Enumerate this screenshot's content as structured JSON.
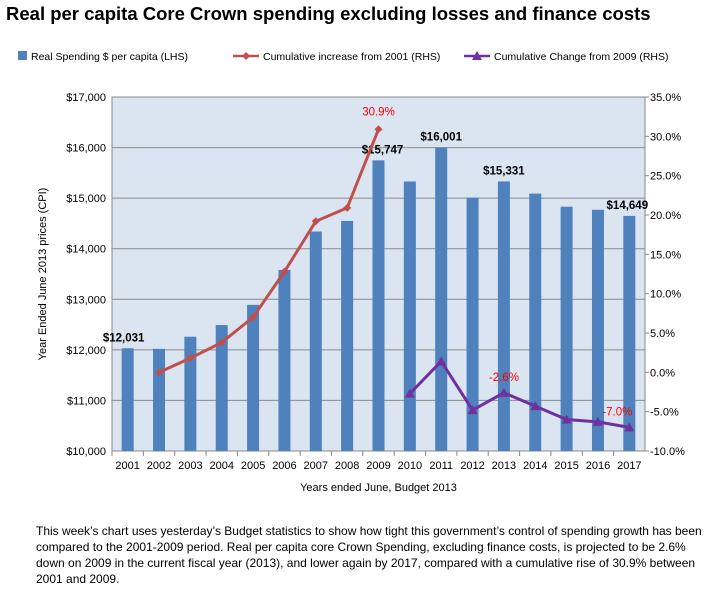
{
  "chart_data": {
    "type": "bar",
    "title": "Real per capita Core Crown spending excluding losses and finance costs",
    "xlabel": "Years ended June, Budget 2013",
    "ylabel": "Year Ended June 2013 prices (CPI)",
    "categories": [
      "2001",
      "2002",
      "2003",
      "2004",
      "2005",
      "2006",
      "2007",
      "2008",
      "2009",
      "2010",
      "2011",
      "2012",
      "2013",
      "2014",
      "2015",
      "2016",
      "2017"
    ],
    "ylim": [
      10000,
      17000
    ],
    "y2lim": [
      -10,
      35
    ],
    "yticks": [
      "$10,000",
      "$11,000",
      "$12,000",
      "$13,000",
      "$14,000",
      "$15,000",
      "$16,000",
      "$17,000"
    ],
    "y2ticks": [
      "-10.0%",
      "-5.0%",
      "0.0%",
      "5.0%",
      "10.0%",
      "15.0%",
      "20.0%",
      "25.0%",
      "30.0%",
      "35.0%"
    ],
    "grid": true,
    "legend_placement": "top",
    "series": [
      {
        "name": "Real Spending $ per capita (LHS)",
        "type": "bar",
        "axis": "left",
        "color": "#4f81bd",
        "values": [
          12031,
          12020,
          12260,
          12490,
          12890,
          13580,
          14340,
          14550,
          15747,
          15330,
          16001,
          15010,
          15331,
          15090,
          14830,
          14770,
          14649
        ],
        "labels": {
          "2001": "$12,031",
          "2009": "$15,747",
          "2011": "$16,001",
          "2013": "$15,331",
          "2017": "$14,649"
        }
      },
      {
        "name": "Cumulative increase from 2001 (RHS)",
        "type": "line",
        "axis": "right",
        "color": "#c0504d",
        "marker": "diamond",
        "values": [
          null,
          0.0,
          1.8,
          3.8,
          7.0,
          12.8,
          19.2,
          20.9,
          30.9,
          null,
          null,
          null,
          null,
          null,
          null,
          null,
          null
        ],
        "labels": {
          "2009": "30.9%"
        }
      },
      {
        "name": "Cumulative Change from 2009 (RHS)",
        "type": "line",
        "axis": "right",
        "color": "#7030a0",
        "marker": "triangle",
        "values": [
          null,
          null,
          null,
          null,
          null,
          null,
          null,
          null,
          null,
          -2.7,
          1.4,
          -4.8,
          -2.6,
          -4.3,
          -6.0,
          -6.3,
          -7.0
        ],
        "labels": {
          "2013": "-2.6%",
          "2017": "-7.0%"
        }
      }
    ],
    "label_color": "#ff0000"
  },
  "caption": "This week’s chart uses yesterday’s Budget statistics to show how tight this government’s control of spending growth has been compared to the 2001-2009 period.  Real per capita core Crown Spending, excluding finance costs, is projected to be 2.6% down on 2009 in the current fiscal year (2013), and lower again by 2017, compared with a cumulative rise of 30.9% between 2001 and 2009."
}
